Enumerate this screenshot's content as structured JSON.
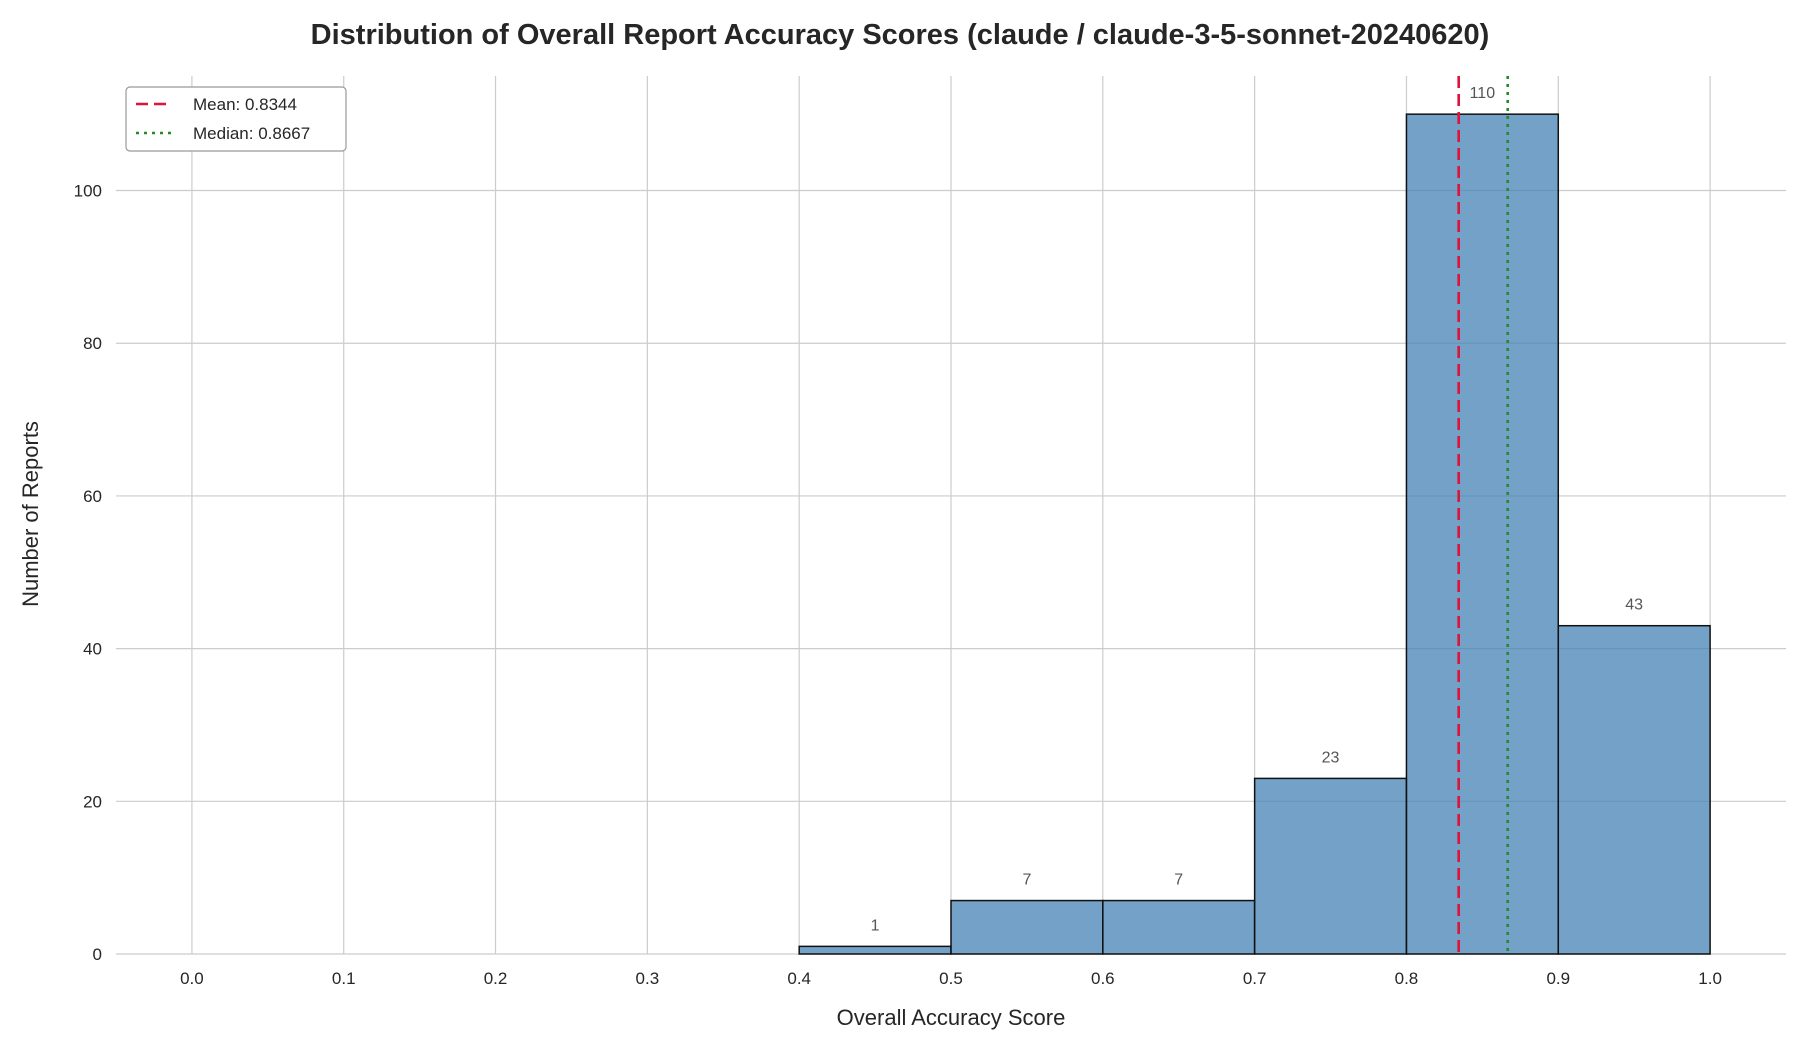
{
  "chart_data": {
    "type": "bar",
    "title": "Distribution of Overall Report Accuracy Scores (claude / claude-3-5-sonnet-20240620)",
    "xlabel": "Overall Accuracy Score",
    "ylabel": "Number of Reports",
    "xlim": [
      -0.05,
      1.05
    ],
    "ylim": [
      0,
      115
    ],
    "x_ticks": [
      "0.0",
      "0.1",
      "0.2",
      "0.3",
      "0.4",
      "0.5",
      "0.6",
      "0.7",
      "0.8",
      "0.9",
      "1.0"
    ],
    "y_ticks": [
      "0",
      "20",
      "40",
      "60",
      "80",
      "100"
    ],
    "bins": [
      {
        "start": 0.4,
        "end": 0.5,
        "count": 1
      },
      {
        "start": 0.5,
        "end": 0.6,
        "count": 7
      },
      {
        "start": 0.6,
        "end": 0.7,
        "count": 7
      },
      {
        "start": 0.7,
        "end": 0.8,
        "count": 23
      },
      {
        "start": 0.8,
        "end": 0.9,
        "count": 110
      },
      {
        "start": 0.9,
        "end": 1.0,
        "count": 43
      }
    ],
    "bar_labels": [
      "1",
      "7",
      "7",
      "23",
      "110",
      "43"
    ],
    "reference_lines": [
      {
        "name": "Mean",
        "value": 0.8344,
        "label": "Mean: 0.8344",
        "color": "#dc143c",
        "style": "dashed"
      },
      {
        "name": "Median",
        "value": 0.8667,
        "label": "Median: 0.8667",
        "color": "#228b22",
        "style": "dotted"
      }
    ],
    "bar_color": "#4682b4",
    "grid": true,
    "legend_position": "top-left"
  }
}
